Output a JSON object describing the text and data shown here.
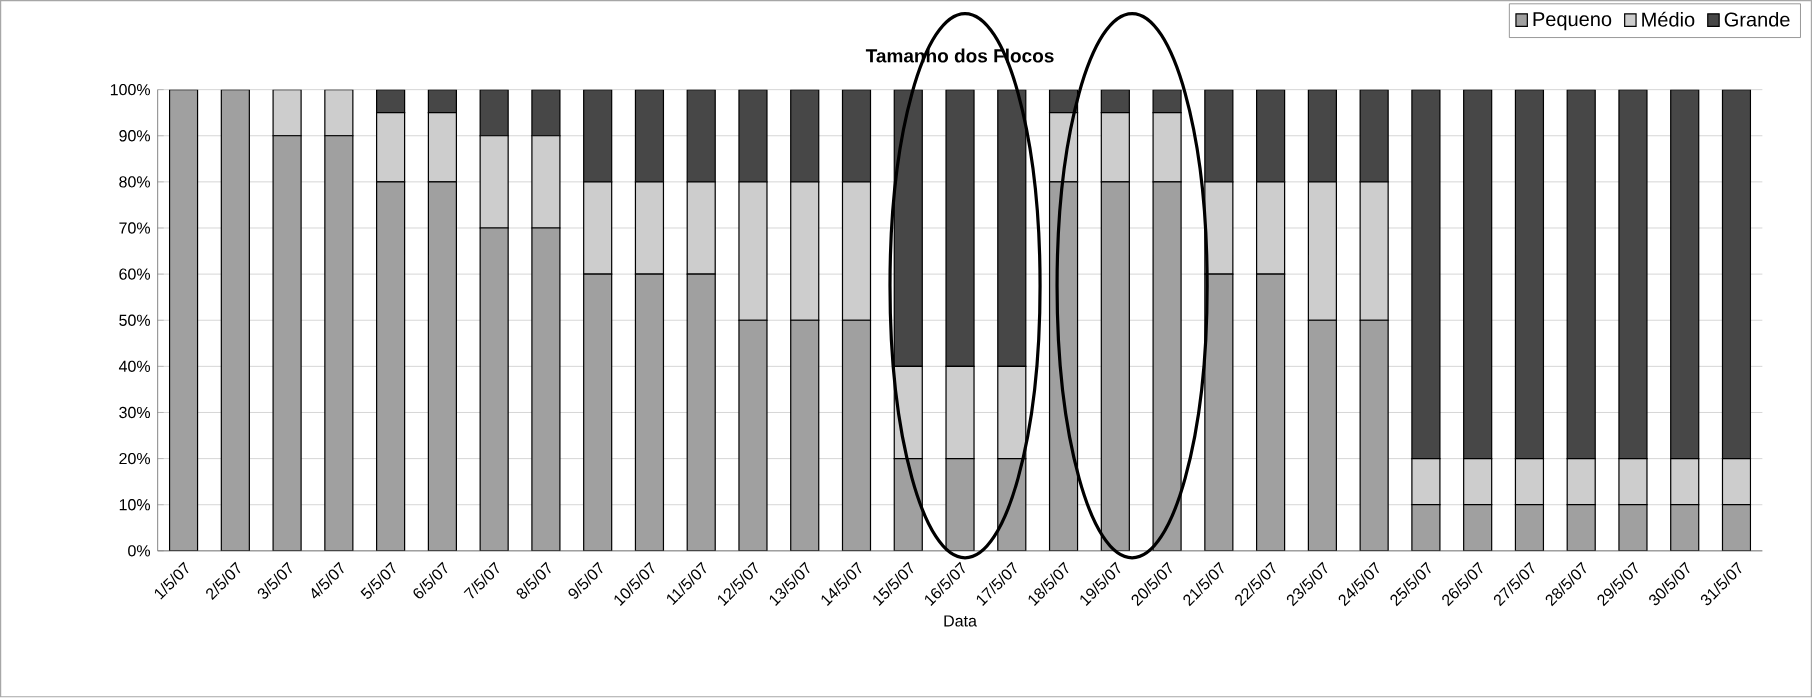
{
  "chart_data": {
    "type": "bar",
    "title": "Tamanho dos Flocos",
    "xlabel": "Data",
    "stacked": true,
    "categories": [
      "1/5/07",
      "2/5/07",
      "3/5/07",
      "4/5/07",
      "5/5/07",
      "6/5/07",
      "7/5/07",
      "8/5/07",
      "9/5/07",
      "10/5/07",
      "11/5/07",
      "12/5/07",
      "13/5/07",
      "14/5/07",
      "15/5/07",
      "16/5/07",
      "17/5/07",
      "18/5/07",
      "19/5/07",
      "20/5/07",
      "21/5/07",
      "22/5/07",
      "23/5/07",
      "24/5/07",
      "25/5/07",
      "26/5/07",
      "27/5/07",
      "28/5/07",
      "29/5/07",
      "30/5/07",
      "31/5/07"
    ],
    "series": [
      {
        "name": "Pequeno",
        "color": "#a0a0a0",
        "values": [
          100,
          100,
          90,
          90,
          80,
          80,
          70,
          70,
          60,
          60,
          60,
          50,
          50,
          50,
          20,
          20,
          20,
          80,
          80,
          80,
          60,
          60,
          50,
          50,
          10,
          10,
          10,
          10,
          10,
          10,
          10
        ]
      },
      {
        "name": "Médio",
        "color": "#cdcdcd",
        "values": [
          0,
          0,
          10,
          10,
          15,
          15,
          20,
          20,
          20,
          20,
          20,
          30,
          30,
          30,
          20,
          20,
          20,
          15,
          15,
          15,
          20,
          20,
          30,
          30,
          10,
          10,
          10,
          10,
          10,
          10,
          10
        ]
      },
      {
        "name": "Grande",
        "color": "#474747",
        "values": [
          0,
          0,
          0,
          0,
          5,
          5,
          10,
          10,
          20,
          20,
          20,
          20,
          20,
          20,
          60,
          60,
          60,
          5,
          5,
          5,
          20,
          20,
          20,
          20,
          80,
          80,
          80,
          80,
          80,
          80,
          80
        ]
      }
    ],
    "ylim": [
      0,
      100
    ],
    "yticks": [
      {
        "value": 0,
        "label": "0%"
      },
      {
        "value": 10,
        "label": "10%"
      },
      {
        "value": 20,
        "label": "20%"
      },
      {
        "value": 30,
        "label": "30%"
      },
      {
        "value": 40,
        "label": "40%"
      },
      {
        "value": 50,
        "label": "50%"
      },
      {
        "value": 60,
        "label": "60%"
      },
      {
        "value": 70,
        "label": "70%"
      },
      {
        "value": 80,
        "label": "80%"
      },
      {
        "value": 90,
        "label": "90%"
      },
      {
        "value": 100,
        "label": "100%"
      }
    ],
    "grid": "y",
    "legend": "top right"
  }
}
